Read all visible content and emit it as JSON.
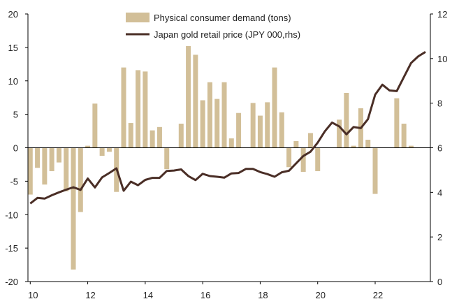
{
  "chart_data": {
    "type": "bar+line",
    "x_ticks": [
      "10",
      "12",
      "14",
      "16",
      "18",
      "20",
      "22"
    ],
    "y_left": {
      "min": -20,
      "max": 20,
      "ticks": [
        "20",
        "15",
        "10",
        "5",
        "0",
        "-5",
        "-10",
        "-15",
        "-20"
      ]
    },
    "y_right": {
      "min": 0,
      "max": 12,
      "ticks": [
        "12",
        "10",
        "8",
        "6",
        "4",
        "2",
        "0"
      ]
    },
    "legend_position": "top-center",
    "series": [
      {
        "name": "Physical consumer demand (tons)",
        "type": "bar",
        "axis": "left",
        "color": "#d2bf98",
        "x": [
          2010.0,
          2010.25,
          2010.5,
          2010.75,
          2011.0,
          2011.25,
          2011.5,
          2011.75,
          2012.0,
          2012.25,
          2012.5,
          2012.75,
          2013.0,
          2013.25,
          2013.5,
          2013.75,
          2014.0,
          2014.25,
          2014.5,
          2014.75,
          2015.0,
          2015.25,
          2015.5,
          2015.75,
          2016.0,
          2016.25,
          2016.5,
          2016.75,
          2017.0,
          2017.25,
          2017.5,
          2017.75,
          2018.0,
          2018.25,
          2018.5,
          2018.75,
          2019.0,
          2019.25,
          2019.5,
          2019.75,
          2020.0,
          2020.25,
          2020.5,
          2020.75,
          2021.0,
          2021.25,
          2021.5,
          2021.75,
          2022.0,
          2022.25,
          2022.5,
          2022.75,
          2023.0,
          2023.25
        ],
        "values": [
          -7.0,
          -3.0,
          -5.5,
          -3.5,
          -2.2,
          -6.5,
          -18.2,
          -9.6,
          0.3,
          6.6,
          -1.2,
          -0.6,
          -6.6,
          12.0,
          3.7,
          11.6,
          11.4,
          2.6,
          3.1,
          -3.2,
          0,
          3.6,
          15.2,
          13.9,
          7.1,
          9.8,
          7.3,
          9.8,
          1.4,
          5.2,
          0,
          6.7,
          4.8,
          6.8,
          12.0,
          5.3,
          -2.9,
          1.0,
          -3.6,
          2.2,
          -3.5,
          0,
          0,
          4.2,
          8.2,
          0.3,
          5.9,
          1.2,
          -6.9,
          0,
          0,
          7.4,
          3.6,
          0.3
        ]
      },
      {
        "name": "Japan gold retail price (JPY 000,rhs)",
        "type": "line",
        "axis": "right",
        "color": "#4a2e26",
        "x": [
          2010.0,
          2010.25,
          2010.5,
          2010.75,
          2011.0,
          2011.25,
          2011.5,
          2011.75,
          2012.0,
          2012.25,
          2012.5,
          2012.75,
          2013.0,
          2013.25,
          2013.5,
          2013.75,
          2014.0,
          2014.25,
          2014.5,
          2014.75,
          2015.0,
          2015.25,
          2015.5,
          2015.75,
          2016.0,
          2016.25,
          2016.5,
          2016.75,
          2017.0,
          2017.25,
          2017.5,
          2017.75,
          2018.0,
          2018.25,
          2018.5,
          2018.75,
          2019.0,
          2019.25,
          2019.5,
          2019.75,
          2020.0,
          2020.25,
          2020.5,
          2020.75,
          2021.0,
          2021.25,
          2021.5,
          2021.75,
          2022.0,
          2022.25,
          2022.5,
          2022.75,
          2023.0,
          2023.25,
          2023.5,
          2023.75
        ],
        "values": [
          3.5,
          3.75,
          3.72,
          3.87,
          4.0,
          4.12,
          4.23,
          4.11,
          4.62,
          4.22,
          4.67,
          4.87,
          5.08,
          4.07,
          4.48,
          4.32,
          4.56,
          4.65,
          4.65,
          4.96,
          4.98,
          5.03,
          4.73,
          4.55,
          4.83,
          4.73,
          4.7,
          4.66,
          4.85,
          4.87,
          5.05,
          5.05,
          4.91,
          4.82,
          4.7,
          4.9,
          4.97,
          5.3,
          5.63,
          5.82,
          6.23,
          6.74,
          7.13,
          6.96,
          6.6,
          6.93,
          6.88,
          7.28,
          8.38,
          8.83,
          8.57,
          8.54,
          9.17,
          9.8,
          10.1,
          10.3
        ]
      }
    ]
  }
}
